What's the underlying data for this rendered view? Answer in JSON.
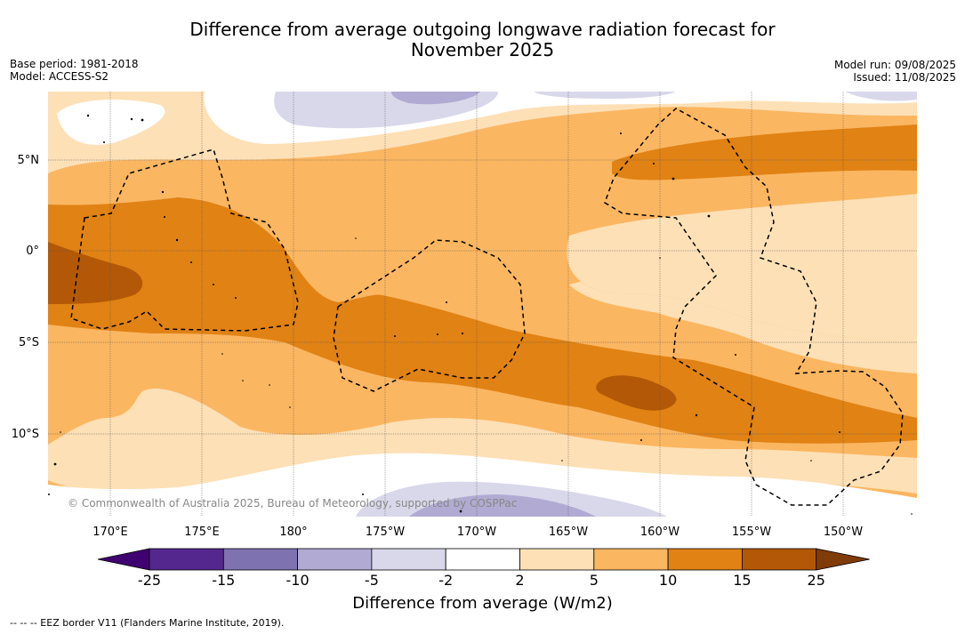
{
  "title_line1": "Difference from average outgoing longwave radiation forecast for",
  "title_line2": "November 2025",
  "base_period": "Base period: 1981-2018",
  "model": "Model: ACCESS-S2",
  "model_run": "Model run: 09/08/2025",
  "issued": "Issued: 11/08/2025",
  "copyright": "© Commonwealth of Australia 2025, Bureau of Meteorology, supported by COSPPac",
  "map": {
    "lat_labels": [
      "5°N",
      "0°",
      "5°S",
      "10°S"
    ],
    "lon_labels": [
      "170°E",
      "175°E",
      "180°",
      "175°W",
      "170°W",
      "165°W",
      "160°W",
      "155°W",
      "150°W"
    ]
  },
  "colorbar": {
    "title": "Difference from average (W/m2)",
    "tick_labels": [
      "-25",
      "-15",
      "-10",
      "-5",
      "-2",
      "2",
      "5",
      "10",
      "15",
      "25"
    ],
    "colors": [
      "#3f0071",
      "#54278f",
      "#7f72b0",
      "#b1abd3",
      "#d9d8ea",
      "#ffffff",
      "#fde0b6",
      "#fbb661",
      "#e08214",
      "#b35806",
      "#7f3b08"
    ]
  },
  "footnote": "--  --  -- EEZ border V11 (Flanders Marine Institute, 2019)."
}
